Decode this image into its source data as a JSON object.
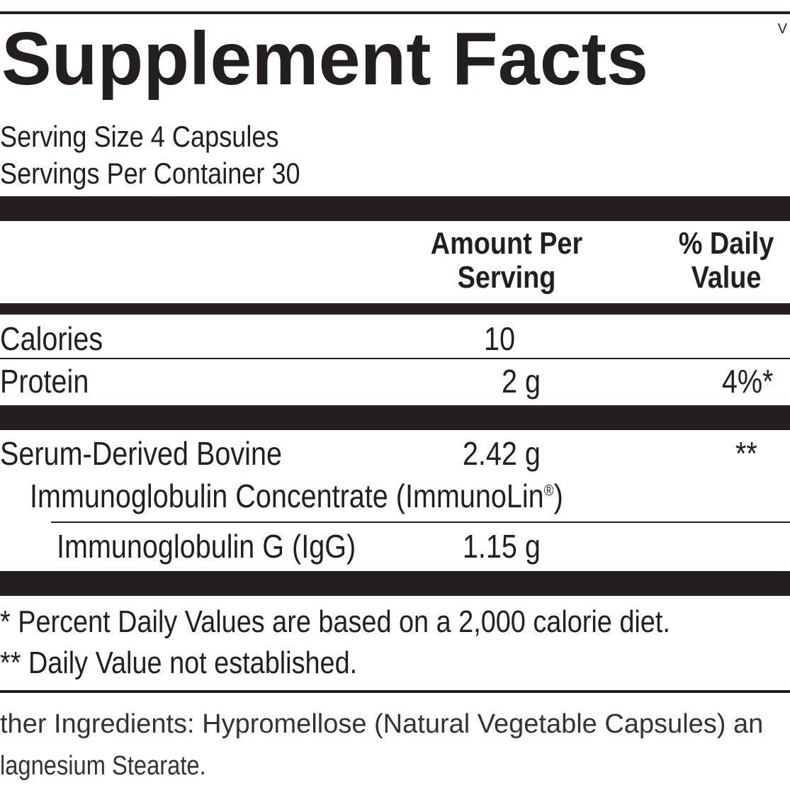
{
  "label": {
    "title": "Supplement Facts",
    "corner_mark": "V",
    "serving_size": "Serving Size 4 Capsules",
    "servings_per_container": "Servings Per Container 30",
    "header": {
      "amount_line1": "Amount Per",
      "amount_line2": "Serving",
      "dv_line1": "% Daily",
      "dv_line2": "Value"
    },
    "rows": {
      "calories": {
        "name": "Calories",
        "amount": "10",
        "dv": ""
      },
      "protein": {
        "name": "Protein",
        "amount": "2 g",
        "dv": "4%*"
      },
      "serum": {
        "name_line1": "Serum-Derived Bovine",
        "name_line2": "Immunoglobulin Concentrate (ImmunoLin",
        "registered": "®",
        "name_line2_end": ")",
        "amount": "2.42 g",
        "dv": "**"
      },
      "igg": {
        "name": "Immunoglobulin G (IgG)",
        "amount": "1.15 g",
        "dv": ""
      }
    },
    "footnotes": {
      "percent_dv": "* Percent Daily Values are based on a 2,000 calorie diet.",
      "dv_not_established": "** Daily Value not established."
    },
    "other_ingredients": {
      "line1": "ther Ingredients: Hypromellose (Natural Vegetable Capsules) an",
      "line2": "lagnesium Stearate."
    }
  }
}
